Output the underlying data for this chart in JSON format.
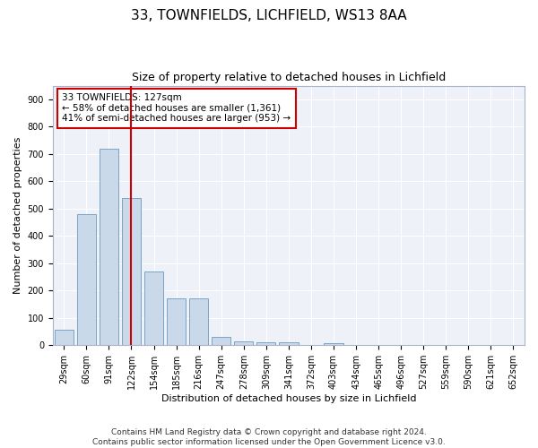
{
  "title1": "33, TOWNFIELDS, LICHFIELD, WS13 8AA",
  "title2": "Size of property relative to detached houses in Lichfield",
  "xlabel": "Distribution of detached houses by size in Lichfield",
  "ylabel": "Number of detached properties",
  "categories": [
    "29sqm",
    "60sqm",
    "91sqm",
    "122sqm",
    "154sqm",
    "185sqm",
    "216sqm",
    "247sqm",
    "278sqm",
    "309sqm",
    "341sqm",
    "372sqm",
    "403sqm",
    "434sqm",
    "465sqm",
    "496sqm",
    "527sqm",
    "559sqm",
    "590sqm",
    "621sqm",
    "652sqm"
  ],
  "values": [
    57,
    480,
    720,
    540,
    270,
    170,
    170,
    30,
    15,
    12,
    10,
    0,
    8,
    0,
    0,
    0,
    0,
    0,
    0,
    0,
    0
  ],
  "bar_color": "#c9d9ea",
  "bar_edge_color": "#6a9abf",
  "vline_x": 3.0,
  "vline_color": "#cc0000",
  "annotation_text": "33 TOWNFIELDS: 127sqm\n← 58% of detached houses are smaller (1,361)\n41% of semi-detached houses are larger (953) →",
  "annotation_box_color": "white",
  "annotation_box_edge": "#cc0000",
  "ylim": [
    0,
    950
  ],
  "yticks": [
    0,
    100,
    200,
    300,
    400,
    500,
    600,
    700,
    800,
    900
  ],
  "footnote": "Contains HM Land Registry data © Crown copyright and database right 2024.\nContains public sector information licensed under the Open Government Licence v3.0.",
  "title_fontsize": 11,
  "subtitle_fontsize": 9,
  "footnote_fontsize": 6.5,
  "tick_fontsize": 7,
  "ylabel_fontsize": 8,
  "xlabel_fontsize": 8
}
